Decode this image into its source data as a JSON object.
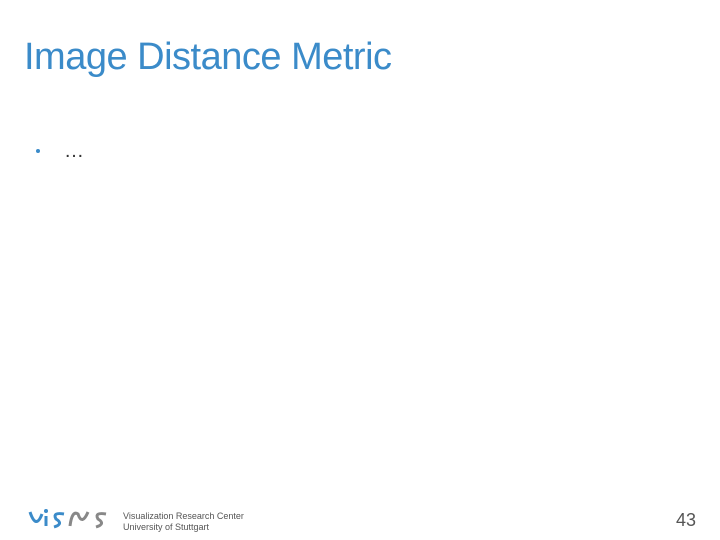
{
  "slide": {
    "title": "Image Distance Metric",
    "bullets": [
      "…"
    ],
    "logo": {
      "name": "VISUS",
      "line1": "Visualization Research Center",
      "line2": "University of Stuttgart"
    },
    "page_number": "43"
  }
}
